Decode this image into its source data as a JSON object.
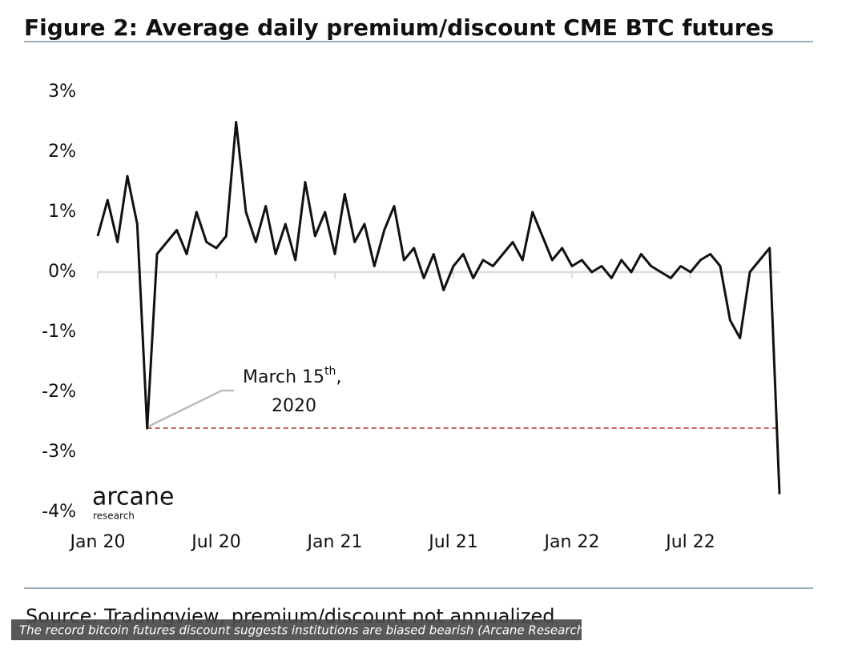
{
  "chart_data": {
    "type": "line",
    "title": "Figure 2: Average daily premium/discount CME BTC futures",
    "categories": [
      "Jan 20",
      null,
      null,
      null,
      null,
      null,
      null,
      null,
      null,
      null,
      null,
      null,
      "Jul 20",
      null,
      null,
      null,
      null,
      null,
      null,
      null,
      null,
      null,
      null,
      null,
      "Jan 21",
      null,
      null,
      null,
      null,
      null,
      null,
      null,
      null,
      null,
      null,
      null,
      "Jul 21",
      null,
      null,
      null,
      null,
      null,
      null,
      null,
      null,
      null,
      null,
      null,
      "Jan 22",
      null,
      null,
      null,
      null,
      null,
      null,
      null,
      null,
      null,
      null,
      null,
      "Jul 22",
      null,
      null,
      null,
      null,
      null,
      null,
      null,
      null,
      null
    ],
    "series": [
      {
        "name": "Premium/discount",
        "color": "#111111",
        "values": [
          0.6,
          1.2,
          0.5,
          1.6,
          0.8,
          -2.6,
          0.3,
          0.5,
          0.7,
          0.3,
          1.0,
          0.5,
          0.4,
          0.6,
          2.5,
          1.0,
          0.5,
          1.1,
          0.3,
          0.8,
          0.2,
          1.5,
          0.6,
          1.0,
          0.3,
          1.3,
          0.5,
          0.8,
          0.1,
          0.7,
          1.1,
          0.2,
          0.4,
          -0.1,
          0.3,
          -0.3,
          0.1,
          0.3,
          -0.1,
          0.2,
          0.1,
          0.3,
          0.5,
          0.2,
          1.0,
          0.6,
          0.2,
          0.4,
          0.1,
          0.2,
          0.0,
          0.1,
          -0.1,
          0.2,
          0.0,
          0.3,
          0.1,
          0.0,
          -0.1,
          0.1,
          0.0,
          0.2,
          0.3,
          0.1,
          -0.8,
          -1.1,
          0.0,
          0.2,
          0.4,
          -3.7
        ]
      }
    ],
    "ylim": [
      -4,
      3
    ],
    "yticks": [
      {
        "value": 3,
        "label": "3%"
      },
      {
        "value": 2,
        "label": "2%"
      },
      {
        "value": 1,
        "label": "1%"
      },
      {
        "value": 0,
        "label": "0%"
      },
      {
        "value": -1,
        "label": "-1%"
      },
      {
        "value": -2,
        "label": "-2%"
      },
      {
        "value": -3,
        "label": "-3%"
      },
      {
        "value": -4,
        "label": "-4%"
      }
    ],
    "hline": {
      "value": -2.6,
      "color": "#b5302f"
    },
    "annotation": [
      "March 15",
      "th",
      ",",
      "2020"
    ],
    "logo": [
      "arcane",
      "research"
    ],
    "source": "Source: Tradingview, premium/discount not annualized",
    "caption": "The record bitcoin futures discount suggests institutions are biased bearish (Arcane Research)"
  }
}
